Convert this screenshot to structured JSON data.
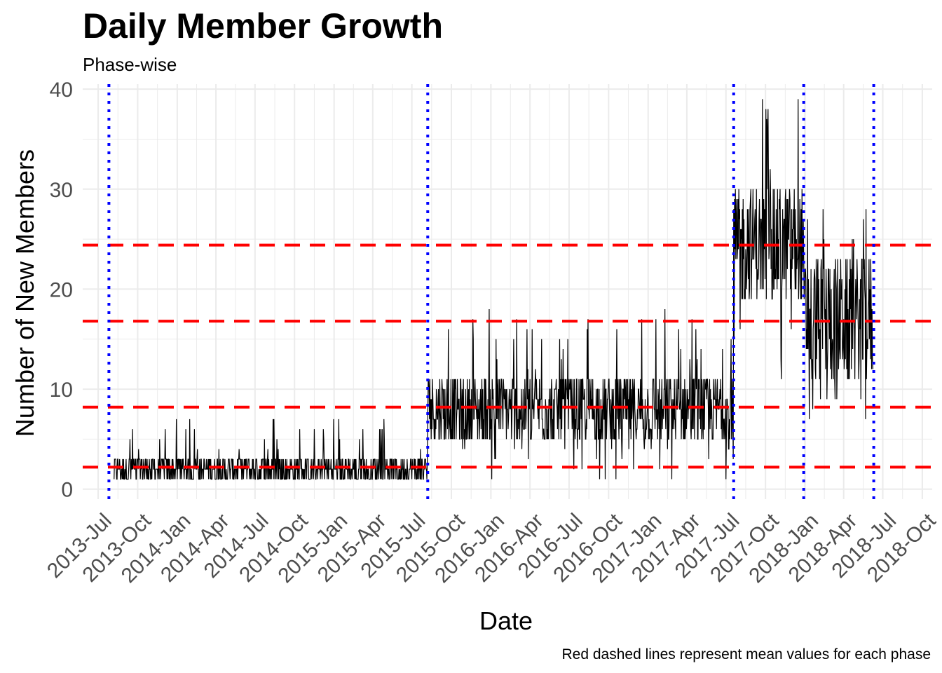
{
  "chart_data": {
    "type": "line",
    "title": "Daily Member Growth",
    "subtitle": "Phase-wise",
    "xlabel": "Date",
    "ylabel": "Number of New Members",
    "caption": "Red dashed lines represent mean values for each phase",
    "xlim": [
      "2013-05-26",
      "2018-10-24"
    ],
    "ylim": [
      -1,
      40.5
    ],
    "y_ticks": [
      0,
      10,
      20,
      30,
      40
    ],
    "x_ticks": [
      {
        "date": "2013-07-01",
        "label": "2013-Jul"
      },
      {
        "date": "2013-10-01",
        "label": "2013-Oct"
      },
      {
        "date": "2014-01-01",
        "label": "2014-Jan"
      },
      {
        "date": "2014-04-01",
        "label": "2014-Apr"
      },
      {
        "date": "2014-07-01",
        "label": "2014-Jul"
      },
      {
        "date": "2014-10-01",
        "label": "2014-Oct"
      },
      {
        "date": "2015-01-01",
        "label": "2015-Jan"
      },
      {
        "date": "2015-04-01",
        "label": "2015-Apr"
      },
      {
        "date": "2015-07-01",
        "label": "2015-Jul"
      },
      {
        "date": "2015-10-01",
        "label": "2015-Oct"
      },
      {
        "date": "2016-01-01",
        "label": "2016-Jan"
      },
      {
        "date": "2016-04-01",
        "label": "2016-Apr"
      },
      {
        "date": "2016-07-01",
        "label": "2016-Jul"
      },
      {
        "date": "2016-10-01",
        "label": "2016-Oct"
      },
      {
        "date": "2017-01-01",
        "label": "2017-Jan"
      },
      {
        "date": "2017-04-01",
        "label": "2017-Apr"
      },
      {
        "date": "2017-07-01",
        "label": "2017-Jul"
      },
      {
        "date": "2017-10-01",
        "label": "2017-Oct"
      },
      {
        "date": "2018-01-01",
        "label": "2018-Jan"
      },
      {
        "date": "2018-04-01",
        "label": "2018-Apr"
      },
      {
        "date": "2018-07-01",
        "label": "2018-Jul"
      },
      {
        "date": "2018-10-01",
        "label": "2018-Oct"
      }
    ],
    "phase_boundaries": [
      "2013-07-26",
      "2015-08-07",
      "2017-07-19",
      "2017-12-29",
      "2018-06-10"
    ],
    "phase_means": [
      2.2,
      8.2,
      24.4,
      16.8
    ],
    "phases": [
      {
        "start": "2013-08-07",
        "end": "2015-08-06",
        "mean": 2.2,
        "min": 1,
        "max": 7,
        "typical_low": 1,
        "typical_high": 3
      },
      {
        "start": "2015-08-07",
        "end": "2017-07-18",
        "mean": 8.2,
        "min": 1,
        "max": 18,
        "typical_low": 5,
        "typical_high": 11
      },
      {
        "start": "2017-07-19",
        "end": "2017-12-28",
        "mean": 24.4,
        "min": 10,
        "max": 39,
        "typical_low": 19,
        "typical_high": 30
      },
      {
        "start": "2017-12-29",
        "end": "2018-06-08",
        "mean": 16.8,
        "min": 7,
        "max": 30,
        "typical_low": 11,
        "typical_high": 23
      }
    ],
    "colors": {
      "series": "#000000",
      "mean_lines": "#ff0000",
      "phase_boundaries": "#0000ff",
      "grid": "#ebebeb",
      "axis_text": "#4d4d4d"
    },
    "grid": true,
    "legend": "none"
  }
}
